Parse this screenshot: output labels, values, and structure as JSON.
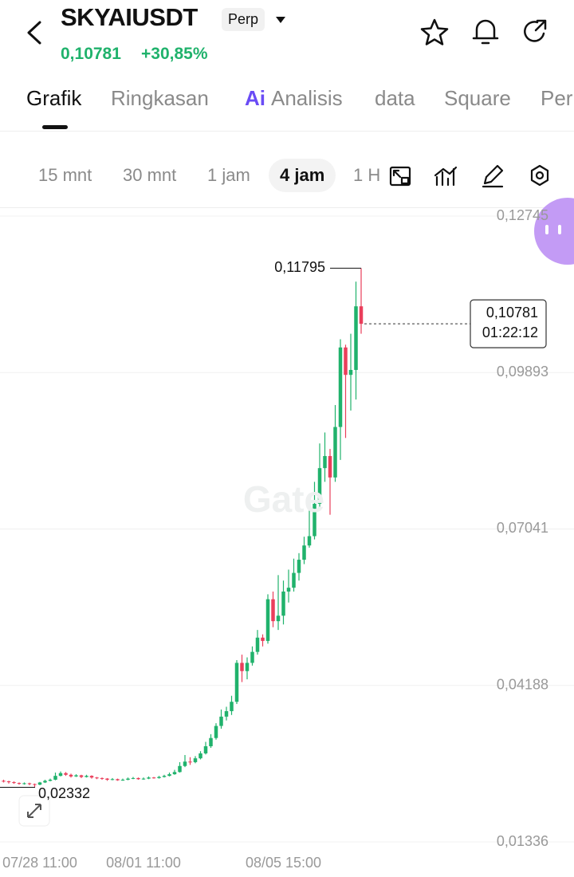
{
  "header": {
    "symbol": "SKYAIUSDT",
    "badge": "Perp",
    "price": "0,10781",
    "change": "+30,85%"
  },
  "tabs": [
    "Grafik",
    "Ringkasan",
    "Analisis",
    "data",
    "Square",
    "Per"
  ],
  "tab_ai_prefix": "Ai",
  "intervals": [
    "15 mnt",
    "30 mnt",
    "1 jam",
    "4 jam",
    "1 H"
  ],
  "chart_data": {
    "type": "candlestick",
    "watermark": "Gate",
    "up_color": "#20b26c",
    "down_color": "#ea3e5b",
    "categories": [
      null,
      null,
      null,
      null,
      null,
      null,
      null,
      "07/28 11:00",
      null,
      null,
      null,
      null,
      null,
      null,
      null,
      null,
      null,
      null,
      null,
      null,
      null,
      null,
      null,
      null,
      null,
      null,
      null,
      "08/01 11:00",
      null,
      null,
      null,
      null,
      null,
      null,
      null,
      null,
      null,
      null,
      null,
      null,
      null,
      null,
      null,
      null,
      null,
      null,
      null,
      null,
      null,
      null,
      null,
      null,
      null,
      null,
      "08/05 15:00",
      null,
      null,
      null,
      null,
      null,
      null,
      null,
      null,
      null,
      null,
      null,
      null,
      null,
      null,
      null
    ],
    "open": [
      0.0245,
      0.0244,
      0.02425,
      0.0241,
      0.02395,
      0.02405,
      0.0239,
      0.0238,
      0.0242,
      0.0245,
      0.0247,
      0.0254,
      0.0259,
      0.0256,
      0.0253,
      0.0255,
      0.0252,
      0.0254,
      0.0251,
      0.025,
      0.0249,
      0.0247,
      0.0248,
      0.0246,
      0.0247,
      0.0249,
      0.025,
      0.0248,
      0.0249,
      0.0251,
      0.025,
      0.0252,
      0.0254,
      0.0257,
      0.0261,
      0.0272,
      0.028,
      0.0279,
      0.0286,
      0.0295,
      0.0308,
      0.0323,
      0.0345,
      0.0362,
      0.0372,
      0.0389,
      0.046,
      0.0445,
      0.046,
      0.048,
      0.0506,
      0.05,
      0.0576,
      0.0536,
      0.0546,
      0.059,
      0.0597,
      0.0624,
      0.0648,
      0.0674,
      0.0691,
      0.075,
      0.0815,
      0.0837,
      0.0798,
      0.089,
      0.1035,
      0.0985,
      0.0994,
      0.111
    ],
    "high": [
      0.0247,
      0.0245,
      0.0244,
      0.0242,
      0.0242,
      0.02415,
      0.024,
      0.0243,
      0.0247,
      0.0249,
      0.026,
      0.0262,
      0.0261,
      0.0258,
      0.0257,
      0.0256,
      0.0256,
      0.0255,
      0.0252,
      0.0251,
      0.025,
      0.025,
      0.0249,
      0.0249,
      0.0251,
      0.0252,
      0.0251,
      0.0251,
      0.0253,
      0.0252,
      0.0254,
      0.0256,
      0.026,
      0.0265,
      0.0279,
      0.0292,
      0.0288,
      0.029,
      0.0299,
      0.0316,
      0.033,
      0.035,
      0.0375,
      0.038,
      0.04,
      0.0465,
      0.0475,
      0.047,
      0.049,
      0.052,
      0.0512,
      0.0585,
      0.059,
      0.062,
      0.061,
      0.063,
      0.065,
      0.066,
      0.069,
      0.074,
      0.079,
      0.086,
      0.088,
      0.085,
      0.093,
      0.105,
      0.104,
      0.106,
      0.1155,
      0.11795
    ],
    "low": [
      0.0242,
      0.024,
      0.02395,
      0.0238,
      0.0238,
      0.0237,
      0.02332,
      0.0237,
      0.0241,
      0.0244,
      0.0246,
      0.0253,
      0.0254,
      0.0251,
      0.0252,
      0.025,
      0.0251,
      0.0249,
      0.0248,
      0.0247,
      0.0245,
      0.0246,
      0.0245,
      0.0245,
      0.0246,
      0.0248,
      0.0247,
      0.0247,
      0.0248,
      0.0249,
      0.0249,
      0.0251,
      0.0253,
      0.0256,
      0.026,
      0.027,
      0.0274,
      0.0277,
      0.0284,
      0.0293,
      0.0305,
      0.032,
      0.034,
      0.0355,
      0.0365,
      0.0385,
      0.0425,
      0.043,
      0.0455,
      0.0475,
      0.049,
      0.0495,
      0.0525,
      0.052,
      0.053,
      0.057,
      0.059,
      0.061,
      0.064,
      0.067,
      0.0685,
      0.074,
      0.079,
      0.073,
      0.079,
      0.083,
      0.087,
      0.092,
      0.094,
      0.106
    ],
    "close": [
      0.0244,
      0.02425,
      0.0241,
      0.02395,
      0.02405,
      0.0239,
      0.0238,
      0.0242,
      0.0245,
      0.0247,
      0.0254,
      0.0259,
      0.0256,
      0.0253,
      0.0255,
      0.0252,
      0.0254,
      0.0251,
      0.025,
      0.0249,
      0.0247,
      0.0248,
      0.0246,
      0.0247,
      0.0249,
      0.025,
      0.0248,
      0.0249,
      0.0251,
      0.025,
      0.0252,
      0.0254,
      0.0257,
      0.0261,
      0.0272,
      0.028,
      0.0279,
      0.0286,
      0.0295,
      0.0308,
      0.0323,
      0.0345,
      0.0362,
      0.0372,
      0.0389,
      0.046,
      0.0445,
      0.046,
      0.048,
      0.0506,
      0.05,
      0.0576,
      0.0536,
      0.0546,
      0.059,
      0.0597,
      0.0624,
      0.0648,
      0.0674,
      0.0691,
      0.075,
      0.0815,
      0.0837,
      0.0798,
      0.089,
      0.1035,
      0.0985,
      0.0994,
      0.111,
      0.10781
    ],
    "high_label": {
      "value": 0.11795,
      "label": "0,11795"
    },
    "low_label": {
      "value": 0.02332,
      "label": "0,02332"
    },
    "last_price": {
      "value": 0.10781,
      "label": "0,10781"
    },
    "countdown": "01:22:12",
    "ylim": [
      0.01336,
      0.12745
    ],
    "yticks": [
      {
        "value": 0.12745,
        "label": "0,12745"
      },
      {
        "value": 0.09893,
        "label": "0,09893"
      },
      {
        "value": 0.07041,
        "label": "0,07041"
      },
      {
        "value": 0.04188,
        "label": "0,04188"
      },
      {
        "value": 0.01336,
        "label": "0,01336"
      }
    ],
    "grid": true
  }
}
